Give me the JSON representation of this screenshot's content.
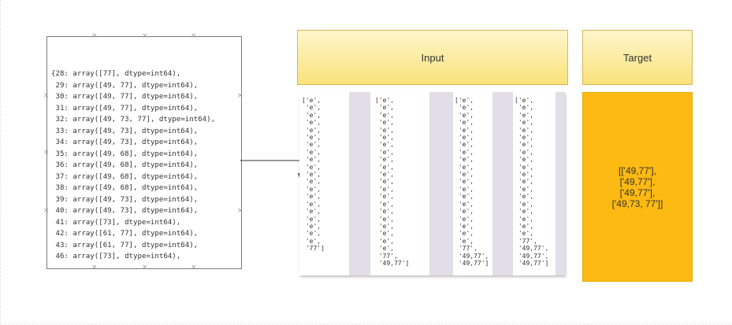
{
  "code_box": {
    "lines": [
      "{28: array([77], dtype=int64),",
      " 29: array([49, 77], dtype=int64),",
      " 30: array([49, 77], dtype=int64),",
      " 31: array([49, 77], dtype=int64),",
      " 32: array([49, 73, 77], dtype=int64),",
      " 33: array([49, 73], dtype=int64),",
      " 34: array([49, 73], dtype=int64),",
      " 35: array([49, 68], dtype=int64),",
      " 36: array([49, 68], dtype=int64),",
      " 37: array([49, 68], dtype=int64),",
      " 38: array([49, 68], dtype=int64),",
      " 39: array([49, 73], dtype=int64),",
      " 40: array([49, 73], dtype=int64),",
      " 41: array([73], dtype=int64),",
      " 42: array([61, 77], dtype=int64),",
      " 43: array([61, 77], dtype=int64),",
      " 46: array([73], dtype=int64),"
    ]
  },
  "input": {
    "header": "Input",
    "columns": [
      [
        "['e',",
        " 'e',",
        " 'e',",
        " 'e',",
        " 'e',",
        " 'e',",
        " 'e',",
        " 'e',",
        " 'e',",
        " 'e',",
        " 'e',",
        " 'e',",
        " 'e',",
        " 'e',",
        " 'e',",
        " 'e',",
        " 'e',",
        " 'e',",
        " 'e',",
        " 'e',",
        " '77']"
      ],
      [
        "['e',",
        " 'e',",
        " 'e',",
        " 'e',",
        " 'e',",
        " 'e',",
        " 'e',",
        " 'e',",
        " 'e',",
        " 'e',",
        " 'e',",
        " 'e',",
        " 'e',",
        " 'e',",
        " 'e',",
        " 'e',",
        " 'e',",
        " 'e',",
        " 'e',",
        " 'e',",
        " 'e',",
        " '77',",
        " '49,77']"
      ],
      [
        "['e',",
        " 'e',",
        " 'e',",
        " 'e',",
        " 'e',",
        " 'e',",
        " 'e',",
        " 'e',",
        " 'e',",
        " 'e',",
        " 'e',",
        " 'e',",
        " 'e',",
        " 'e',",
        " 'e',",
        " 'e',",
        " 'e',",
        " 'e',",
        " 'e',",
        " 'e',",
        " '77',",
        " '49,77',",
        " '49,77']"
      ],
      [
        "['e',",
        " 'e',",
        " 'e',",
        " 'e',",
        " 'e',",
        " 'e',",
        " 'e',",
        " 'e',",
        " 'e',",
        " 'e',",
        " 'e',",
        " 'e',",
        " 'e',",
        " 'e',",
        " 'e',",
        " 'e',",
        " 'e',",
        " 'e',",
        " 'e',",
        " '77',",
        " '49,77',",
        " '49,77',",
        " '49,77']"
      ]
    ]
  },
  "target": {
    "header": "Target",
    "lines": [
      "[['49,77'],",
      "['49,77'],",
      "['49,77'],",
      "['49,73, 77']]"
    ]
  },
  "colors": {
    "header_fill": "#f9e27a",
    "target_fill": "#fdba12",
    "strip_fill": "#e3dce9"
  }
}
